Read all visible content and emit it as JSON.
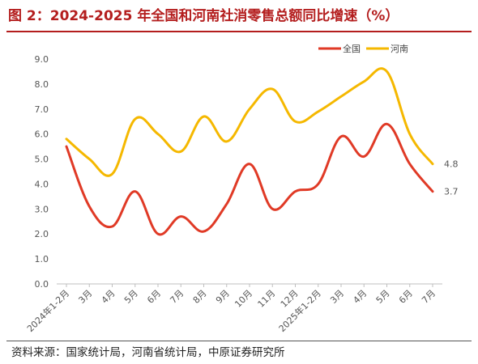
{
  "figure": {
    "title": "图 2：2024-2025 年全国和河南社消零售总额同比增速（%）",
    "source": "资料来源：国家统计局，河南省统计局，中原证券研究所"
  },
  "chart_data": {
    "type": "line",
    "title": "图 2：2024-2025 年全国和河南社消零售总额同比增速（%）",
    "xlabel": "",
    "ylabel": "",
    "categories": [
      "2024年1-2月",
      "3月",
      "4月",
      "5月",
      "6月",
      "7月",
      "8月",
      "9月",
      "10月",
      "11月",
      "12月",
      "2025年1-2月",
      "3月",
      "4月",
      "5月",
      "6月",
      "7月"
    ],
    "ylim": [
      0,
      9
    ],
    "yticks": [
      "0.0",
      "1.0",
      "2.0",
      "3.0",
      "4.0",
      "5.0",
      "6.0",
      "7.0",
      "8.0",
      "9.0"
    ],
    "grid": false,
    "legend_position": "top-right",
    "series": [
      {
        "name": "全国",
        "color": "#e03a26",
        "values": [
          5.5,
          3.1,
          2.3,
          3.7,
          2.0,
          2.7,
          2.1,
          3.2,
          4.8,
          3.0,
          3.7,
          4.0,
          5.9,
          5.1,
          6.4,
          4.8,
          3.7
        ],
        "end_label": "3.7"
      },
      {
        "name": "河南",
        "color": "#f5b800",
        "values": [
          5.8,
          5.0,
          4.4,
          6.6,
          6.0,
          5.3,
          6.7,
          5.7,
          7.0,
          7.8,
          6.5,
          6.9,
          7.5,
          8.1,
          8.5,
          6.0,
          4.8
        ],
        "end_label": "4.8"
      }
    ]
  }
}
